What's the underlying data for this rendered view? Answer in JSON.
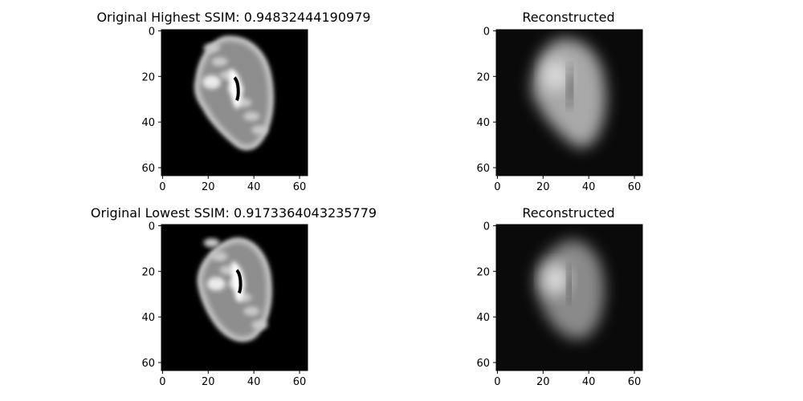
{
  "figure": {
    "background": "#ffffff",
    "panels": [
      {
        "title": "Original Highest SSIM: 0.94832444190979",
        "role": "original"
      },
      {
        "title": "Reconstructed",
        "role": "reconstructed"
      },
      {
        "title": "Original Lowest SSIM: 0.9173364043235779",
        "role": "original"
      },
      {
        "title": "Reconstructed",
        "role": "reconstructed"
      }
    ]
  },
  "chart_data": [
    {
      "type": "heatmap",
      "title": "Original Highest SSIM: 0.94832444190979",
      "image_size": [
        64,
        64
      ],
      "colormap": "gray",
      "xlim": [
        0,
        63
      ],
      "ylim": [
        63,
        0
      ],
      "xticks": [
        0,
        20,
        40,
        60
      ],
      "yticks": [
        0,
        20,
        40,
        60
      ]
    },
    {
      "type": "heatmap",
      "title": "Reconstructed",
      "image_size": [
        64,
        64
      ],
      "colormap": "gray",
      "xlim": [
        0,
        63
      ],
      "ylim": [
        63,
        0
      ],
      "xticks": [
        0,
        20,
        40,
        60
      ],
      "yticks": [
        0,
        20,
        40,
        60
      ]
    },
    {
      "type": "heatmap",
      "title": "Original Lowest SSIM: 0.9173364043235779",
      "image_size": [
        64,
        64
      ],
      "colormap": "gray",
      "xlim": [
        0,
        63
      ],
      "ylim": [
        63,
        0
      ],
      "xticks": [
        0,
        20,
        40,
        60
      ],
      "yticks": [
        0,
        20,
        40,
        60
      ]
    },
    {
      "type": "heatmap",
      "title": "Reconstructed",
      "image_size": [
        64,
        64
      ],
      "colormap": "gray",
      "xlim": [
        0,
        63
      ],
      "ylim": [
        63,
        0
      ],
      "xticks": [
        0,
        20,
        40,
        60
      ],
      "yticks": [
        0,
        20,
        40,
        60
      ]
    }
  ]
}
